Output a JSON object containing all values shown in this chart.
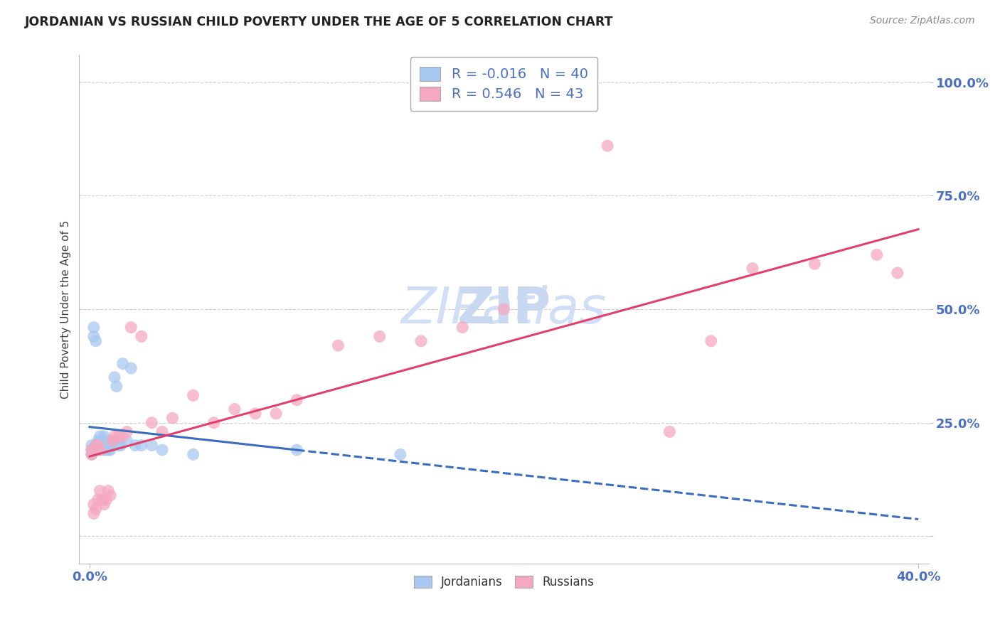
{
  "title": "JORDANIAN VS RUSSIAN CHILD POVERTY UNDER THE AGE OF 5 CORRELATION CHART",
  "source": "Source: ZipAtlas.com",
  "ylabel": "Child Poverty Under the Age of 5",
  "yticks": [
    "",
    "25.0%",
    "50.0%",
    "75.0%",
    "100.0%"
  ],
  "ytick_vals": [
    0.0,
    0.25,
    0.5,
    0.75,
    1.0
  ],
  "xlim": [
    -0.005,
    0.405
  ],
  "ylim": [
    -0.06,
    1.06
  ],
  "jordanian_R": -0.016,
  "jordanian_N": 40,
  "russian_R": 0.546,
  "russian_N": 43,
  "jordanian_color": "#a8c8f0",
  "russian_color": "#f5a8c0",
  "jordanian_line_color": "#3b6dbf",
  "russian_line_color": "#e0406a",
  "background_color": "#ffffff",
  "grid_color": "#cccccc",
  "title_color": "#222222",
  "axis_label_color": "#4a6fc4",
  "watermark_color": "#d0dff5",
  "jordanian_x": [
    0.001,
    0.001,
    0.001,
    0.002,
    0.002,
    0.003,
    0.003,
    0.003,
    0.004,
    0.004,
    0.005,
    0.005,
    0.005,
    0.006,
    0.006,
    0.007,
    0.007,
    0.007,
    0.008,
    0.008,
    0.009,
    0.009,
    0.01,
    0.01,
    0.011,
    0.011,
    0.012,
    0.013,
    0.014,
    0.015,
    0.016,
    0.018,
    0.02,
    0.022,
    0.025,
    0.03,
    0.035,
    0.05,
    0.1,
    0.15
  ],
  "jordanian_y": [
    0.2,
    0.18,
    0.19,
    0.44,
    0.46,
    0.2,
    0.19,
    0.43,
    0.21,
    0.19,
    0.22,
    0.2,
    0.19,
    0.21,
    0.2,
    0.22,
    0.2,
    0.19,
    0.2,
    0.19,
    0.21,
    0.19,
    0.2,
    0.19,
    0.21,
    0.2,
    0.35,
    0.33,
    0.2,
    0.2,
    0.38,
    0.21,
    0.37,
    0.2,
    0.2,
    0.2,
    0.19,
    0.18,
    0.19,
    0.18
  ],
  "russian_x": [
    0.001,
    0.001,
    0.002,
    0.002,
    0.003,
    0.003,
    0.004,
    0.004,
    0.005,
    0.005,
    0.006,
    0.007,
    0.008,
    0.009,
    0.01,
    0.011,
    0.012,
    0.014,
    0.016,
    0.018,
    0.02,
    0.025,
    0.03,
    0.035,
    0.04,
    0.05,
    0.06,
    0.07,
    0.08,
    0.09,
    0.1,
    0.12,
    0.14,
    0.16,
    0.18,
    0.2,
    0.25,
    0.28,
    0.32,
    0.35,
    0.38,
    0.3,
    0.39
  ],
  "russian_y": [
    0.19,
    0.18,
    0.07,
    0.05,
    0.2,
    0.06,
    0.08,
    0.2,
    0.1,
    0.19,
    0.08,
    0.07,
    0.08,
    0.1,
    0.09,
    0.21,
    0.22,
    0.22,
    0.22,
    0.23,
    0.46,
    0.44,
    0.25,
    0.23,
    0.26,
    0.31,
    0.25,
    0.28,
    0.27,
    0.27,
    0.3,
    0.42,
    0.44,
    0.43,
    0.46,
    0.5,
    0.86,
    0.23,
    0.59,
    0.6,
    0.62,
    0.43,
    0.58
  ]
}
